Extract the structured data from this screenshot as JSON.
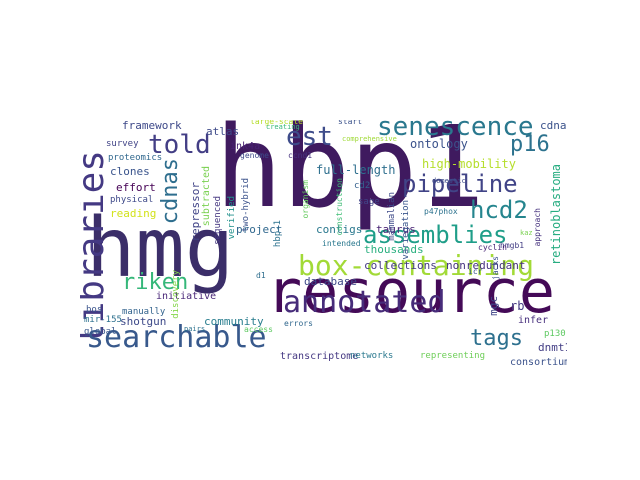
{
  "words": [
    {
      "id": "hbp1",
      "text": "hbp1",
      "color": "#3f1a5f"
    },
    {
      "id": "hmg",
      "text": "hmg",
      "color": "#3b2e69"
    },
    {
      "id": "resource",
      "text": "resource",
      "color": "#440a57"
    },
    {
      "id": "libraries",
      "text": "libraries",
      "color": "#443983"
    },
    {
      "id": "box-containing",
      "text": "box-containing",
      "color": "#a2da37"
    },
    {
      "id": "annotated",
      "text": "annotated",
      "color": "#472c7a"
    },
    {
      "id": "searchable",
      "text": "searchable",
      "color": "#38598c"
    },
    {
      "id": "senescence",
      "text": "senescence",
      "color": "#2a788e"
    },
    {
      "id": "pipeline",
      "text": "pipeline",
      "color": "#414487"
    },
    {
      "id": "assemblies",
      "text": "assemblies",
      "color": "#1f9e89"
    },
    {
      "id": "told",
      "text": "told",
      "color": "#433e85"
    },
    {
      "id": "est",
      "text": "est",
      "color": "#3e4c8a"
    },
    {
      "id": "cdnas",
      "text": "cdnas",
      "color": "#2e6e8e"
    },
    {
      "id": "hcd2",
      "text": "hcd2",
      "color": "#25858e"
    },
    {
      "id": "p16",
      "text": "p16",
      "color": "#2c728e"
    },
    {
      "id": "tags",
      "text": "tags",
      "color": "#2d708e"
    },
    {
      "id": "riken",
      "text": "riken",
      "color": "#35b779"
    },
    {
      "id": "cdna",
      "text": "cdna",
      "color": "#3b528b"
    },
    {
      "id": "framework",
      "text": "framework",
      "color": "#3e4989"
    },
    {
      "id": "full-length",
      "text": "full-length",
      "color": "#2e6f8e"
    },
    {
      "id": "high-mobility",
      "text": "high-mobility",
      "color": "#b5de2b"
    },
    {
      "id": "ontology",
      "text": "ontology",
      "color": "#3b528b"
    },
    {
      "id": "retinoblastoma",
      "text": "retinoblastoma",
      "color": "#27ad81"
    },
    {
      "id": "atlas",
      "text": "atlas",
      "color": "#3e4a89"
    },
    {
      "id": "ink4a",
      "text": "ink4a",
      "color": "#482173"
    },
    {
      "id": "clones",
      "text": "clones",
      "color": "#3a548c"
    },
    {
      "id": "effort",
      "text": "effort",
      "color": "#440154"
    },
    {
      "id": "reading",
      "text": "reading",
      "color": "#d2e21b"
    },
    {
      "id": "repressor",
      "text": "repressor",
      "color": "#414487"
    },
    {
      "id": "project",
      "text": "project",
      "color": "#31688e"
    },
    {
      "id": "contigs",
      "text": "contigs",
      "color": "#2a788e"
    },
    {
      "id": "taurus",
      "text": "taurus",
      "color": "#482374"
    },
    {
      "id": "thousands",
      "text": "thousands",
      "color": "#29af7f"
    },
    {
      "id": "database",
      "text": "database",
      "color": "#3e4989"
    },
    {
      "id": "collections",
      "text": "collections",
      "color": "#443a83"
    },
    {
      "id": "nonredundant",
      "text": "nonredundant",
      "color": "#46337f"
    },
    {
      "id": "initiative",
      "text": "initiative",
      "color": "#482677"
    },
    {
      "id": "shotgun",
      "text": "shotgun",
      "color": "#3e4a89"
    },
    {
      "id": "community",
      "text": "community",
      "color": "#287d8e"
    },
    {
      "id": "dnmt1",
      "text": "dnmt1",
      "color": "#433e85"
    },
    {
      "id": "consortium",
      "text": "consortium",
      "color": "#3b528b"
    },
    {
      "id": "transcriptome",
      "text": "transcriptome",
      "color": "#453882"
    },
    {
      "id": "networks",
      "text": "networks",
      "color": "#2a788e"
    },
    {
      "id": "representing",
      "text": "representing",
      "color": "#6ece58"
    },
    {
      "id": "rb",
      "text": "rb",
      "color": "#443983"
    },
    {
      "id": "mgc",
      "text": "mgc",
      "color": "#404688"
    },
    {
      "id": "infer",
      "text": "infer",
      "color": "#472f7d"
    },
    {
      "id": "p130",
      "text": "p130",
      "color": "#5ec962"
    },
    {
      "id": "proteomics",
      "text": "proteomics",
      "color": "#31688e"
    },
    {
      "id": "survey",
      "text": "survey",
      "color": "#414487"
    },
    {
      "id": "physical",
      "text": "physical",
      "color": "#3e4989"
    },
    {
      "id": "manually",
      "text": "manually",
      "color": "#33638d"
    },
    {
      "id": "global",
      "text": "global",
      "color": "#39568c"
    },
    {
      "id": "mir-155",
      "text": "mir-155",
      "color": "#2d708e"
    },
    {
      "id": "bos",
      "text": "bos",
      "color": "#3a548c"
    },
    {
      "id": "discovery",
      "text": "discovery",
      "color": "#85d54a"
    },
    {
      "id": "subtracted",
      "text": "subtracted",
      "color": "#7ad151"
    },
    {
      "id": "sequenced",
      "text": "sequenced",
      "color": "#453781"
    },
    {
      "id": "verified",
      "text": "verified",
      "color": "#21918c"
    },
    {
      "id": "two-hybrid",
      "text": "two-hybrid",
      "color": "#3b528b"
    },
    {
      "id": "hbp-1",
      "text": "hbp-1",
      "color": "#2c728e"
    },
    {
      "id": "large-scale",
      "text": "large-scale",
      "color": "#b5de2b"
    },
    {
      "id": "genome",
      "text": "genome",
      "color": "#3e4a89"
    },
    {
      "id": "ccnd1",
      "text": "ccnd1",
      "color": "#46327e"
    },
    {
      "id": "creating",
      "text": "creating",
      "color": "#35b779"
    },
    {
      "id": "start",
      "text": "start",
      "color": "#3b528b"
    },
    {
      "id": "comprehensive",
      "text": "comprehensive",
      "color": "#a0da39"
    },
    {
      "id": "mammalian",
      "text": "mammalian",
      "color": "#3e4a89"
    },
    {
      "id": "cd2",
      "text": "cd2",
      "color": "#34608d"
    },
    {
      "id": "sage",
      "text": "sage",
      "color": "#414487"
    },
    {
      "id": "variegation",
      "text": "variegation",
      "color": "#39558c"
    },
    {
      "id": "organism",
      "text": "organism",
      "color": "#65cb5e"
    },
    {
      "id": "construction",
      "text": "construction",
      "color": "#3dbc74"
    },
    {
      "id": "intended",
      "text": "intended",
      "color": "#2a788e"
    },
    {
      "id": "domestic",
      "text": "domestic",
      "color": "#3e4c8a"
    },
    {
      "id": "p47phox",
      "text": "p47phox",
      "color": "#2c728e"
    },
    {
      "id": "approach",
      "text": "approach",
      "color": "#46327e"
    },
    {
      "id": "hmgb1",
      "text": "hmgb1",
      "color": "#433d84"
    },
    {
      "id": "cyclin",
      "text": "cyclin",
      "color": "#482475"
    },
    {
      "id": "icr",
      "text": "icr",
      "color": "#39558c"
    },
    {
      "id": "access",
      "text": "access",
      "color": "#5ec962"
    },
    {
      "id": "errors",
      "text": "errors",
      "color": "#31688e"
    },
    {
      "id": "pairs",
      "text": "pairs",
      "color": "#2c728e"
    },
    {
      "id": "d1",
      "text": "d1",
      "color": "#2e6e8e"
    },
    {
      "id": "jacks",
      "text": "jacks",
      "color": "#3b528b"
    },
    {
      "id": "kaz",
      "text": "kaz",
      "color": "#7ad151"
    },
    {
      "id": "mammalian-small",
      "text": "mammalian",
      "color": "#3e4a89"
    }
  ]
}
